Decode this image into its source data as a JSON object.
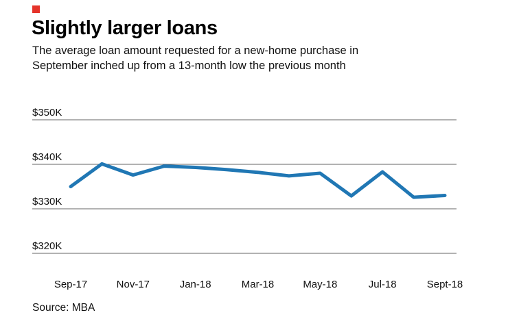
{
  "page": {
    "title": "Slightly larger loans",
    "subtitle": "The average loan amount requested for a new-home purchase in September inched up from a 13-month low the previous month",
    "source": "Source: MBA",
    "accent_red": "#e5332a",
    "line_color": "#2077b4",
    "background": "#ffffff"
  },
  "chart_data": {
    "type": "line",
    "title": "Slightly larger loans",
    "x": [
      "Sep-17",
      "Oct-17",
      "Nov-17",
      "Dec-17",
      "Jan-18",
      "Feb-18",
      "Mar-18",
      "Apr-18",
      "May-18",
      "Jun-18",
      "Jul-18",
      "Aug-18",
      "Sept-18"
    ],
    "series": [
      {
        "name": "Average loan amount requested for new-home purchase ($K)",
        "values": [
          335.0,
          340.1,
          337.6,
          339.6,
          339.3,
          338.8,
          338.2,
          337.4,
          338.0,
          332.9,
          338.3,
          332.6,
          333.0
        ]
      }
    ],
    "y_ticks": [
      350,
      340,
      330,
      320
    ],
    "y_tick_labels": [
      "$350K",
      "$340K",
      "$330K",
      "$320K"
    ],
    "x_tick_labels": [
      "Sep-17",
      "Nov-17",
      "Jan-18",
      "Mar-18",
      "May-18",
      "Jul-18",
      "Sept-18"
    ],
    "ylim": [
      315,
      352
    ],
    "grid": true,
    "legend": "none",
    "source": "MBA"
  }
}
